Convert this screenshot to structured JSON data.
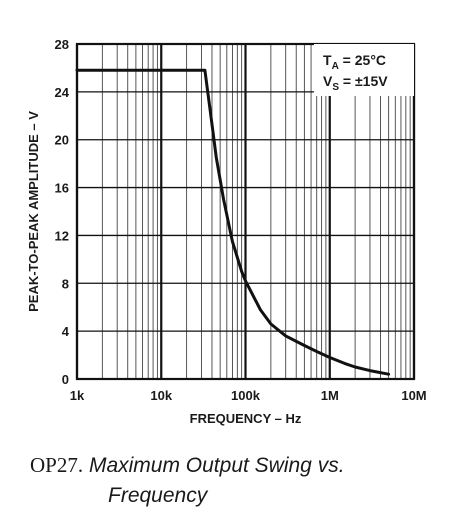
{
  "chart_data": {
    "type": "line",
    "x_scale": "log",
    "xlim": [
      1000,
      10000000
    ],
    "ylim": [
      0,
      28
    ],
    "xlabel": "FREQUENCY – Hz",
    "ylabel": "PEAK-TO-PEAK AMPLITUDE – V",
    "x_ticks": [
      {
        "value": 1000,
        "label": "1k"
      },
      {
        "value": 10000,
        "label": "10k"
      },
      {
        "value": 100000,
        "label": "100k"
      },
      {
        "value": 1000000,
        "label": "1M"
      },
      {
        "value": 10000000,
        "label": "10M"
      }
    ],
    "y_ticks": [
      {
        "value": 0,
        "label": "0"
      },
      {
        "value": 4,
        "label": "4"
      },
      {
        "value": 8,
        "label": "8"
      },
      {
        "value": 12,
        "label": "12"
      },
      {
        "value": 16,
        "label": "16"
      },
      {
        "value": 20,
        "label": "20"
      },
      {
        "value": 24,
        "label": "24"
      },
      {
        "value": 28,
        "label": "28"
      }
    ],
    "grid": true,
    "series": [
      {
        "x": [
          1000,
          10000,
          33000,
          38000,
          45000,
          55000,
          70000,
          90000,
          100000,
          150000,
          200000,
          300000,
          500000,
          700000,
          1000000,
          1500000,
          2000000,
          3000000,
          5000000
        ],
        "y": [
          25.8,
          25.8,
          25.8,
          22.5,
          18.5,
          15,
          11.5,
          9,
          8.2,
          5.8,
          4.6,
          3.6,
          2.8,
          2.3,
          1.8,
          1.3,
          1.0,
          0.7,
          0.4
        ],
        "color": "#111111"
      }
    ],
    "annotations": [
      {
        "main": "T",
        "sub": "A",
        "rest": " = 25°C"
      },
      {
        "main": "V",
        "sub": "S",
        "rest": " = ±15V"
      }
    ]
  },
  "caption": {
    "id": "OP27.",
    "title_line1": "Maximum Output Swing vs.",
    "title_line2": "Frequency"
  }
}
